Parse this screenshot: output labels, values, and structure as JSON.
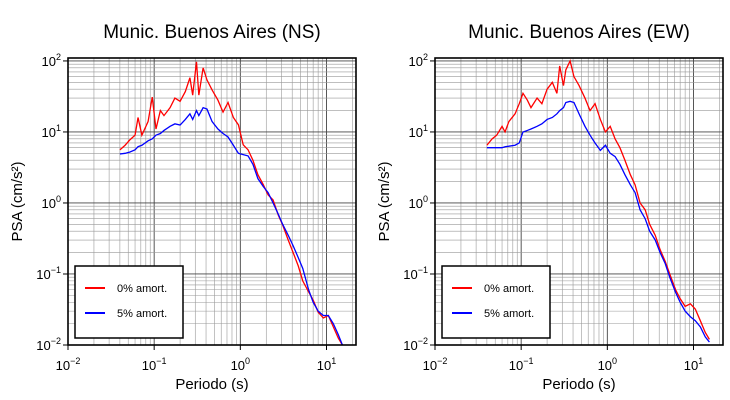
{
  "chart_data": [
    {
      "type": "line",
      "title": "Munic. Buenos Aires (NS)",
      "xlabel": "Periodo (s)",
      "ylabel": "PSA (cm/s²)",
      "log_x": true,
      "log_y": true,
      "grid": true,
      "legend": "lower left",
      "xlim": [
        0.01,
        22
      ],
      "ylim": [
        0.01,
        110
      ],
      "xticks": [
        {
          "value": 0.01,
          "label": "10",
          "exponent": "−2"
        },
        {
          "value": 0.1,
          "label": "10",
          "exponent": "−1"
        },
        {
          "value": 1,
          "label": "10",
          "exponent": "0"
        },
        {
          "value": 10,
          "label": "10",
          "exponent": "1"
        }
      ],
      "yticks": [
        {
          "value": 0.01,
          "label": "10",
          "exponent": "−2"
        },
        {
          "value": 0.1,
          "label": "10",
          "exponent": "−1"
        },
        {
          "value": 1,
          "label": "10",
          "exponent": "0"
        },
        {
          "value": 10,
          "label": "10",
          "exponent": "1"
        },
        {
          "value": 100,
          "label": "10",
          "exponent": "2"
        }
      ],
      "x": [
        0.04,
        0.046,
        0.052,
        0.06,
        0.065,
        0.072,
        0.085,
        0.095,
        0.105,
        0.118,
        0.13,
        0.153,
        0.174,
        0.2,
        0.23,
        0.26,
        0.28,
        0.31,
        0.33,
        0.37,
        0.41,
        0.47,
        0.55,
        0.63,
        0.72,
        0.83,
        0.95,
        1.08,
        1.23,
        1.4,
        1.6,
        1.85,
        2.1,
        2.4,
        2.75,
        3.1,
        3.6,
        4.1,
        4.7,
        5.3,
        6.2,
        7,
        8,
        9.2,
        10.5,
        12,
        13.7,
        15.3
      ],
      "series": [
        {
          "name": "0% amort.",
          "color": "#ff0000",
          "values": [
            5.6,
            6.5,
            7.7,
            9,
            16,
            9,
            14,
            31,
            11,
            20,
            17,
            22,
            30,
            27,
            37,
            58,
            33,
            97,
            33,
            80,
            54,
            39,
            28,
            19,
            26,
            16,
            12.6,
            6.6,
            5.6,
            4,
            2.5,
            1.8,
            1.3,
            1.1,
            0.68,
            0.49,
            0.3,
            0.2,
            0.13,
            0.08,
            0.056,
            0.043,
            0.029,
            0.024,
            0.026,
            0.018,
            0.0125,
            0.01
          ]
        },
        {
          "name": "5% amort.",
          "color": "#0000ff",
          "values": [
            4.9,
            5,
            5.2,
            5.6,
            6.2,
            6.5,
            7.5,
            8,
            9,
            9.5,
            10.5,
            12,
            13,
            12.5,
            15,
            18,
            15,
            20,
            17,
            22,
            21,
            14,
            11,
            9.5,
            8.5,
            6.5,
            5,
            4.8,
            4.6,
            3.5,
            2.2,
            1.7,
            1.4,
            1.0,
            0.7,
            0.5,
            0.35,
            0.25,
            0.17,
            0.12,
            0.06,
            0.04,
            0.03,
            0.026,
            0.026,
            0.02,
            0.014,
            0.01
          ]
        }
      ]
    },
    {
      "type": "line",
      "title": "Munic. Buenos Aires (EW)",
      "xlabel": "Periodo (s)",
      "ylabel": "PSA (cm/s²)",
      "log_x": true,
      "log_y": true,
      "grid": true,
      "legend": "lower left",
      "xlim": [
        0.01,
        22
      ],
      "ylim": [
        0.01,
        110
      ],
      "xticks": [
        {
          "value": 0.01,
          "label": "10",
          "exponent": "−2"
        },
        {
          "value": 0.1,
          "label": "10",
          "exponent": "−1"
        },
        {
          "value": 1,
          "label": "10",
          "exponent": "0"
        },
        {
          "value": 10,
          "label": "10",
          "exponent": "1"
        }
      ],
      "yticks": [
        {
          "value": 0.01,
          "label": "10",
          "exponent": "−2"
        },
        {
          "value": 0.1,
          "label": "10",
          "exponent": "−1"
        },
        {
          "value": 1,
          "label": "10",
          "exponent": "0"
        },
        {
          "value": 10,
          "label": "10",
          "exponent": "1"
        },
        {
          "value": 100,
          "label": "10",
          "exponent": "2"
        }
      ],
      "x": [
        0.04,
        0.046,
        0.052,
        0.06,
        0.065,
        0.072,
        0.085,
        0.095,
        0.105,
        0.118,
        0.13,
        0.153,
        0.174,
        0.2,
        0.23,
        0.26,
        0.28,
        0.31,
        0.33,
        0.37,
        0.41,
        0.47,
        0.55,
        0.63,
        0.72,
        0.83,
        0.95,
        1.08,
        1.23,
        1.4,
        1.6,
        1.85,
        2.1,
        2.4,
        2.75,
        3.1,
        3.6,
        4.1,
        4.7,
        5.3,
        6.2,
        7,
        8,
        9.2,
        10.5,
        12,
        13.7,
        15.3
      ],
      "series": [
        {
          "name": "0% amort.",
          "color": "#ff0000",
          "values": [
            6.5,
            8,
            9,
            12,
            10,
            14,
            18,
            25,
            35,
            28,
            22,
            30,
            25,
            40,
            50,
            35,
            85,
            45,
            75,
            100,
            60,
            45,
            30,
            20,
            25,
            15,
            10,
            12,
            8,
            6,
            4,
            2.5,
            1.8,
            1.0,
            0.8,
            0.5,
            0.35,
            0.22,
            0.15,
            0.1,
            0.06,
            0.045,
            0.035,
            0.038,
            0.032,
            0.022,
            0.015,
            0.012
          ]
        },
        {
          "name": "5% amort.",
          "color": "#0000ff",
          "values": [
            6,
            6,
            6,
            6,
            6.2,
            6.3,
            6.5,
            7,
            10,
            10.5,
            11,
            12,
            13,
            15,
            16,
            18,
            20,
            22,
            26,
            27,
            26,
            18,
            12,
            9,
            7,
            5.5,
            6.5,
            5,
            4.5,
            3.5,
            2.5,
            1.8,
            1.4,
            0.8,
            0.6,
            0.4,
            0.3,
            0.2,
            0.14,
            0.09,
            0.055,
            0.04,
            0.03,
            0.025,
            0.022,
            0.018,
            0.013,
            0.011
          ]
        }
      ]
    }
  ]
}
